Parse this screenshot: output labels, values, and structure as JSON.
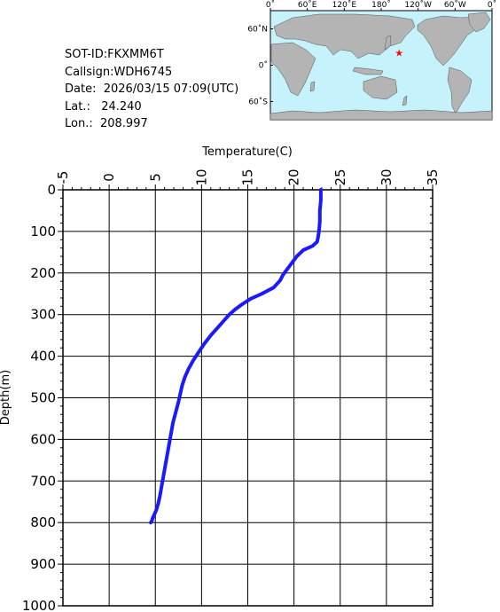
{
  "info": {
    "sot_id": "SOT-ID:FKXMM6T",
    "callsign": "Callsign:WDH6745",
    "date": "Date:  2026/03/15 07:09(UTC)",
    "lat": "Lat.:   24.240",
    "lon": "Lon.:  208.997"
  },
  "map": {
    "top_labels": [
      "0˚",
      "60˚E",
      "120˚E",
      "180˚",
      "120˚W",
      "60˚W",
      "0˚"
    ],
    "left_labels": [
      "60˚N",
      "0˚",
      "60˚S"
    ],
    "ocean_color": "#c6f2fb",
    "land_color": "#b4b4b4",
    "marker_color": "#ff0000",
    "marker_lon": 208.997,
    "marker_lat": 24.24
  },
  "chart_data": {
    "type": "line",
    "xlabel": "Temperature(C)",
    "ylabel": "Depth(m)",
    "xlim": [
      -5,
      35
    ],
    "ylim": [
      1000,
      0
    ],
    "x_ticks": [
      "-5",
      "0",
      "5",
      "10",
      "15",
      "20",
      "25",
      "30",
      "35"
    ],
    "y_ticks": [
      "0",
      "100",
      "200",
      "300",
      "400",
      "500",
      "600",
      "700",
      "800",
      "900",
      "1000"
    ],
    "grid": true,
    "line_color": "#1a1aff",
    "series": [
      {
        "x": [
          22.9,
          22.9,
          22.8,
          22.8,
          22.7,
          22.6,
          22.5,
          22.0,
          21.0,
          20.3,
          19.8,
          19.3,
          18.8,
          18.5,
          17.8,
          16.5,
          15.3,
          14.4,
          13.6,
          13.0,
          12.4,
          11.8,
          11.0,
          10.3,
          9.7,
          9.1,
          8.6,
          8.2,
          7.9,
          7.7,
          7.5,
          7.2,
          6.9,
          6.7,
          6.5,
          6.3,
          6.1,
          5.9,
          5.7,
          5.5,
          5.3,
          5.1,
          4.9,
          4.7,
          4.6,
          4.5
        ],
        "y": [
          0,
          25,
          50,
          75,
          100,
          115,
          125,
          135,
          145,
          160,
          175,
          190,
          205,
          218,
          235,
          250,
          262,
          275,
          288,
          300,
          315,
          330,
          350,
          370,
          390,
          410,
          430,
          450,
          470,
          490,
          510,
          535,
          560,
          585,
          610,
          635,
          660,
          685,
          710,
          735,
          755,
          770,
          780,
          790,
          797,
          800
        ]
      }
    ]
  }
}
